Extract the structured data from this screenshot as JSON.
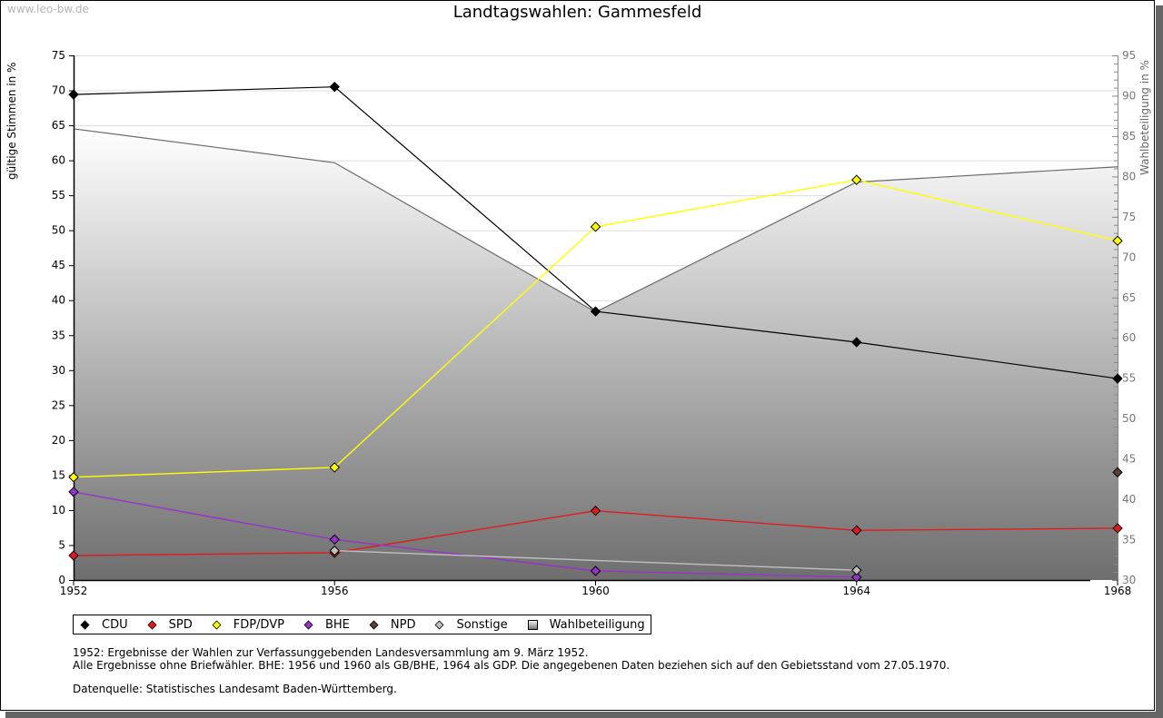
{
  "watermark": "www.leo-bw.de",
  "chart_data": {
    "type": "line",
    "title": "Landtagswahlen: Gammesfeld",
    "ylabel": "gültige Stimmen in %",
    "ylabel_right": "Wahlbeteiligung in %",
    "xlabel": "",
    "x": [
      1952,
      1956,
      1960,
      1964,
      1968
    ],
    "xtick_labels": [
      "1952",
      "1956",
      "1960",
      "1964",
      "1968"
    ],
    "ylim": [
      0,
      75
    ],
    "yticks": [
      0,
      5,
      10,
      15,
      20,
      25,
      30,
      35,
      40,
      45,
      50,
      55,
      60,
      65,
      70,
      75
    ],
    "ylim_right": [
      30,
      95
    ],
    "yticks_right": [
      30,
      35,
      40,
      45,
      50,
      55,
      60,
      65,
      70,
      75,
      80,
      85,
      90,
      95
    ],
    "grid": true,
    "legend_position": "bottom-left",
    "series": [
      {
        "name": "CDU",
        "color": "#000000",
        "axis": "left",
        "values": [
          69.4,
          70.5,
          38.4,
          34.0,
          28.8
        ]
      },
      {
        "name": "SPD",
        "color": "#e31a1c",
        "axis": "left",
        "values": [
          3.5,
          3.9,
          9.9,
          7.1,
          7.4
        ]
      },
      {
        "name": "FDP/DVP",
        "color": "#ffff00",
        "axis": "left",
        "values": [
          14.7,
          16.1,
          50.5,
          57.2,
          48.5
        ]
      },
      {
        "name": "BHE",
        "color": "#9932cc",
        "axis": "left",
        "values": [
          12.6,
          5.8,
          1.3,
          0.4,
          null
        ]
      },
      {
        "name": "NPD",
        "color": "#5c4033",
        "axis": "left",
        "values": [
          null,
          null,
          null,
          null,
          15.4
        ]
      },
      {
        "name": "Sonstige",
        "color": "#c0c0c0",
        "axis": "left",
        "values": [
          null,
          4.2,
          null,
          1.4,
          null
        ]
      },
      {
        "name": "Wahlbeteiligung",
        "color": "#808080",
        "axis": "right",
        "type": "area",
        "values": [
          85.9,
          81.7,
          63.2,
          79.3,
          81.2
        ]
      }
    ]
  },
  "notes": {
    "line1": "1952: Ergebnisse der Wahlen zur Verfassunggebenden Landesversammlung am 9. März 1952.",
    "line2": "Alle Ergebnisse ohne Briefwähler. BHE: 1956 und 1960 als GB/BHE, 1964 als GDP. Die angegebenen Daten beziehen sich auf den Gebietsstand vom 27.05.1970.",
    "source": "Datenquelle: Statistisches Landesamt Baden-Württemberg."
  }
}
